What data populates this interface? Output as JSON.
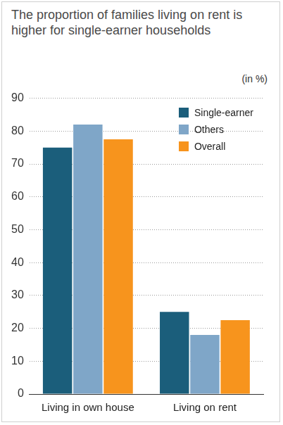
{
  "chart_data": {
    "type": "bar",
    "title": "The proportion of families living on rent is higher for single-earner households",
    "ylabel": "(in %)",
    "categories": [
      "Living in own house",
      "Living on rent"
    ],
    "series": [
      {
        "name": "Single-earner",
        "color": "#1b5e7b",
        "values": [
          75,
          25
        ]
      },
      {
        "name": "Others",
        "color": "#7fa6c8",
        "values": [
          82,
          18
        ]
      },
      {
        "name": "Overall",
        "color": "#f7941d",
        "values": [
          77.5,
          22.5
        ]
      }
    ],
    "ylim": [
      0,
      90
    ],
    "yticks": [
      0,
      10,
      20,
      30,
      40,
      50,
      60,
      70,
      80,
      90
    ],
    "grid": true,
    "legend": "upper right"
  }
}
